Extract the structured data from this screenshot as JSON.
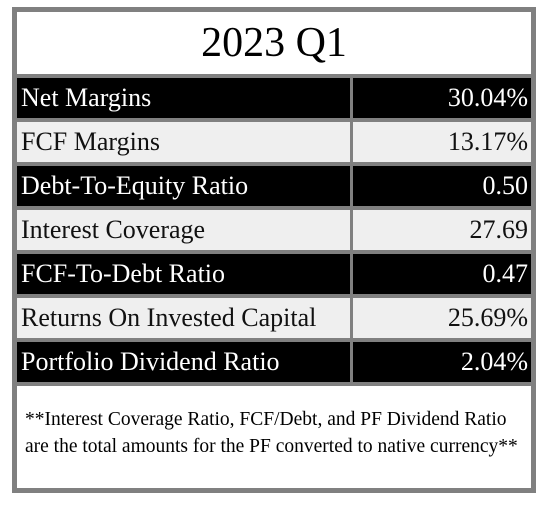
{
  "title": "2023 Q1",
  "rows": [
    {
      "label": "Net Margins",
      "value": "30.04%",
      "style": "dark"
    },
    {
      "label": "FCF Margins",
      "value": "13.17%",
      "style": "light"
    },
    {
      "label": "Debt-To-Equity Ratio",
      "value": "0.50",
      "style": "dark"
    },
    {
      "label": "Interest Coverage",
      "value": "27.69",
      "style": "light"
    },
    {
      "label": "FCF-To-Debt Ratio",
      "value": "0.47",
      "style": "dark"
    },
    {
      "label": "Returns On Invested Capital",
      "value": "25.69%",
      "style": "light"
    },
    {
      "label": "Portfolio Dividend Ratio",
      "value": "2.04%",
      "style": "dark"
    }
  ],
  "footnote": "**Interest Coverage Ratio, FCF/Debt, and PF Dividend Ratio are the total amounts for the PF converted to native currency**",
  "colors": {
    "dark_row": "#000000",
    "light_row": "#efefef",
    "frame": "#808080"
  }
}
